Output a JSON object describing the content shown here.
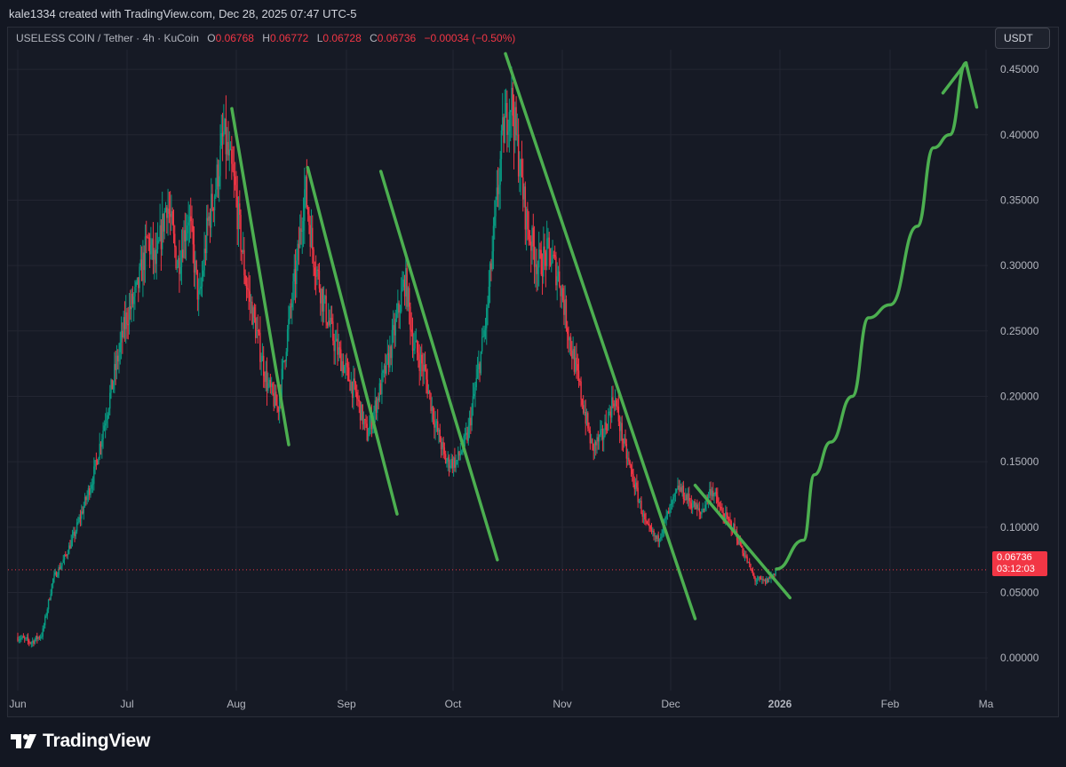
{
  "header": {
    "attribution": "kale1334 created with TradingView.com, Dec 28, 2025 07:47 UTC-5"
  },
  "legend": {
    "symbol": "USELESS COIN / Tether · 4h · KuCoin",
    "open_label": "O",
    "open": "0.06768",
    "high_label": "H",
    "high": "0.06772",
    "low_label": "L",
    "low": "0.06728",
    "close_label": "C",
    "close": "0.06736",
    "change": "−0.00034 (−0.50%)"
  },
  "currency_button": "USDT",
  "price_badge": {
    "price": "0.06736",
    "countdown": "03:12:03"
  },
  "brand": {
    "name": "TradingView"
  },
  "colors": {
    "background": "#161a25",
    "up": "#089981",
    "down": "#f23645",
    "drawing": "#4caf50",
    "grid": "#232632"
  },
  "chart_data": {
    "type": "candlestick",
    "interval": "4h",
    "y_ticks": [
      "0.45000",
      "0.40000",
      "0.35000",
      "0.30000",
      "0.25000",
      "0.20000",
      "0.15000",
      "0.10000",
      "0.05000",
      "0.00000"
    ],
    "ylim": [
      -0.025,
      0.465
    ],
    "x_ticks": [
      "Jun",
      "Jul",
      "Aug",
      "Sep",
      "Oct",
      "Nov",
      "Dec",
      "2026",
      "Feb",
      "Ma"
    ],
    "last_price": 0.06736,
    "price_path": [
      {
        "t": 0.0,
        "v": 0.016
      },
      {
        "t": 0.5,
        "v": 0.012
      },
      {
        "t": 0.9,
        "v": 0.018
      },
      {
        "t": 1.3,
        "v": 0.06
      },
      {
        "t": 1.7,
        "v": 0.075
      },
      {
        "t": 2.1,
        "v": 0.095
      },
      {
        "t": 2.5,
        "v": 0.12
      },
      {
        "t": 2.8,
        "v": 0.14
      },
      {
        "t": 3.2,
        "v": 0.18
      },
      {
        "t": 3.6,
        "v": 0.22
      },
      {
        "t": 4.0,
        "v": 0.26
      },
      {
        "t": 4.4,
        "v": 0.28
      },
      {
        "t": 4.8,
        "v": 0.32
      },
      {
        "t": 5.1,
        "v": 0.3
      },
      {
        "t": 5.5,
        "v": 0.35
      },
      {
        "t": 5.9,
        "v": 0.3
      },
      {
        "t": 6.3,
        "v": 0.34
      },
      {
        "t": 6.7,
        "v": 0.27
      },
      {
        "t": 7.0,
        "v": 0.33
      },
      {
        "t": 7.3,
        "v": 0.36
      },
      {
        "t": 7.6,
        "v": 0.4
      },
      {
        "t": 8.0,
        "v": 0.36
      },
      {
        "t": 8.4,
        "v": 0.29
      },
      {
        "t": 8.8,
        "v": 0.25
      },
      {
        "t": 9.2,
        "v": 0.21
      },
      {
        "t": 9.6,
        "v": 0.19
      },
      {
        "t": 9.9,
        "v": 0.24
      },
      {
        "t": 10.3,
        "v": 0.3
      },
      {
        "t": 10.6,
        "v": 0.36
      },
      {
        "t": 10.9,
        "v": 0.31
      },
      {
        "t": 11.3,
        "v": 0.27
      },
      {
        "t": 11.7,
        "v": 0.24
      },
      {
        "t": 12.1,
        "v": 0.22
      },
      {
        "t": 12.5,
        "v": 0.2
      },
      {
        "t": 12.9,
        "v": 0.17
      },
      {
        "t": 13.3,
        "v": 0.2
      },
      {
        "t": 13.7,
        "v": 0.23
      },
      {
        "t": 14.0,
        "v": 0.26
      },
      {
        "t": 14.3,
        "v": 0.29
      },
      {
        "t": 14.6,
        "v": 0.24
      },
      {
        "t": 15.0,
        "v": 0.22
      },
      {
        "t": 15.4,
        "v": 0.18
      },
      {
        "t": 15.8,
        "v": 0.15
      },
      {
        "t": 16.2,
        "v": 0.15
      },
      {
        "t": 16.6,
        "v": 0.17
      },
      {
        "t": 17.0,
        "v": 0.22
      },
      {
        "t": 17.3,
        "v": 0.26
      },
      {
        "t": 17.6,
        "v": 0.33
      },
      {
        "t": 17.9,
        "v": 0.4
      },
      {
        "t": 18.2,
        "v": 0.43
      },
      {
        "t": 18.5,
        "v": 0.38
      },
      {
        "t": 18.8,
        "v": 0.33
      },
      {
        "t": 19.2,
        "v": 0.3
      },
      {
        "t": 19.6,
        "v": 0.31
      },
      {
        "t": 20.0,
        "v": 0.29
      },
      {
        "t": 20.4,
        "v": 0.24
      },
      {
        "t": 20.8,
        "v": 0.2
      },
      {
        "t": 21.2,
        "v": 0.16
      },
      {
        "t": 21.6,
        "v": 0.17
      },
      {
        "t": 22.0,
        "v": 0.2
      },
      {
        "t": 22.4,
        "v": 0.16
      },
      {
        "t": 22.8,
        "v": 0.13
      },
      {
        "t": 23.2,
        "v": 0.1
      },
      {
        "t": 23.6,
        "v": 0.09
      },
      {
        "t": 24.0,
        "v": 0.11
      },
      {
        "t": 24.4,
        "v": 0.13
      },
      {
        "t": 24.8,
        "v": 0.12
      },
      {
        "t": 25.2,
        "v": 0.11
      },
      {
        "t": 25.6,
        "v": 0.13
      },
      {
        "t": 26.0,
        "v": 0.11
      },
      {
        "t": 26.4,
        "v": 0.1
      },
      {
        "t": 26.8,
        "v": 0.08
      },
      {
        "t": 27.2,
        "v": 0.06
      },
      {
        "t": 27.6,
        "v": 0.058
      },
      {
        "t": 28.0,
        "v": 0.067
      }
    ],
    "drawn_trendlines": [
      {
        "from": {
          "t": 7.9,
          "v": 0.42
        },
        "to": {
          "t": 10.0,
          "v": 0.163
        }
      },
      {
        "from": {
          "t": 10.7,
          "v": 0.375
        },
        "to": {
          "t": 14.0,
          "v": 0.11
        }
      },
      {
        "from": {
          "t": 13.4,
          "v": 0.372
        },
        "to": {
          "t": 17.7,
          "v": 0.075
        }
      },
      {
        "from": {
          "t": 18.0,
          "v": 0.462
        },
        "to": {
          "t": 25.0,
          "v": 0.03
        }
      },
      {
        "from": {
          "t": 25.0,
          "v": 0.132
        },
        "to": {
          "t": 28.5,
          "v": 0.046
        }
      }
    ],
    "drawn_projection": [
      {
        "t": 28.0,
        "v": 0.068
      },
      {
        "t": 29.0,
        "v": 0.09
      },
      {
        "t": 29.4,
        "v": 0.14
      },
      {
        "t": 30.0,
        "v": 0.165
      },
      {
        "t": 30.8,
        "v": 0.2
      },
      {
        "t": 31.4,
        "v": 0.26
      },
      {
        "t": 32.2,
        "v": 0.27
      },
      {
        "t": 33.2,
        "v": 0.33
      },
      {
        "t": 33.8,
        "v": 0.39
      },
      {
        "t": 34.4,
        "v": 0.4
      },
      {
        "t": 35.0,
        "v": 0.455
      }
    ]
  }
}
